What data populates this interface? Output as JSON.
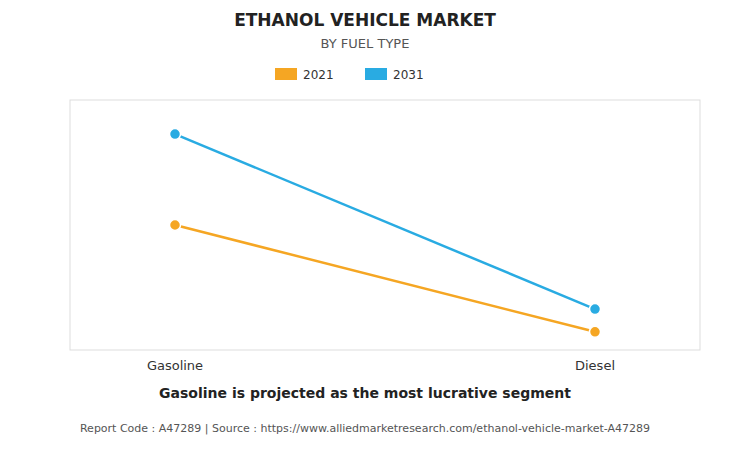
{
  "chart_data": {
    "type": "line",
    "title": "ETHANOL VEHICLE MARKET",
    "subtitle": "BY FUEL TYPE",
    "categories": [
      "Gasoline",
      "Diesel"
    ],
    "series": [
      {
        "name": "2021",
        "color": "#F5A623",
        "values": [
          0.55,
          0.08
        ]
      },
      {
        "name": "2031",
        "color": "#29ABE2",
        "values": [
          0.95,
          0.18
        ]
      }
    ],
    "ylim": [
      0.0,
      1.1
    ],
    "grid": false,
    "tick_labels": "x",
    "legend": "top",
    "marker": "circle",
    "annotations": [
      "Gasoline is projected as the most lucrative segment",
      "Report Code : A47289  |  Source : https://www.alliedmarketresearch.com/ethanol-vehicle-market-A47289"
    ]
  }
}
